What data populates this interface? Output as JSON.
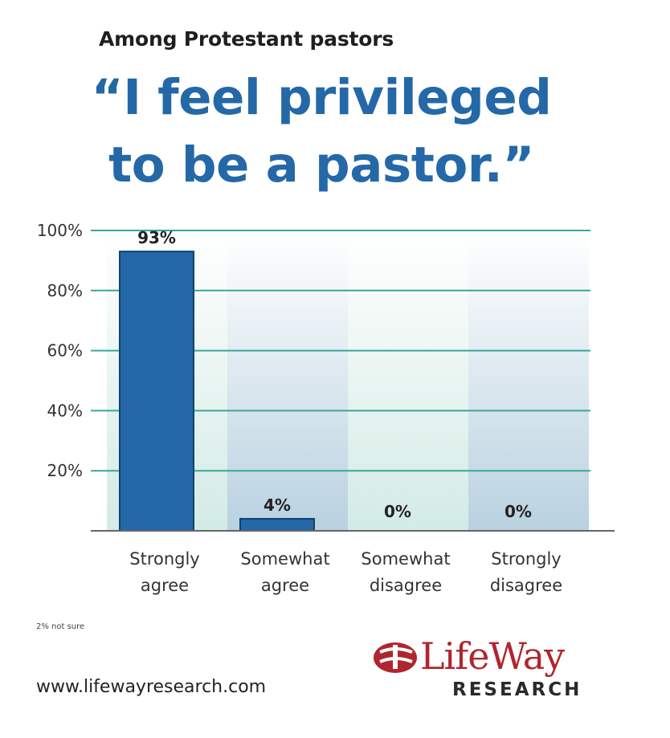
{
  "header": {
    "subtitle": "Among Protestant pastors",
    "quote_line1": "“I feel privileged",
    "quote_line2": "to be a pastor.”"
  },
  "chart_data": {
    "type": "bar",
    "categories": [
      [
        "Strongly",
        "agree"
      ],
      [
        "Somewhat",
        "agree"
      ],
      [
        "Somewhat",
        "disagree"
      ],
      [
        "Strongly",
        "disagree"
      ]
    ],
    "values": [
      93,
      4,
      0,
      0
    ],
    "data_labels": [
      "93%",
      "4%",
      "0%",
      "0%"
    ],
    "ylim": [
      0,
      100
    ],
    "yticks": [
      "20%",
      "40%",
      "60%",
      "80%",
      "100%"
    ],
    "ytick_values": [
      20,
      40,
      60,
      80,
      100
    ],
    "grid": true,
    "colors": {
      "bar": "#2468a8",
      "bar_edge": "#10416e",
      "grid": "#3aa796"
    }
  },
  "footer": {
    "note": "2% not sure",
    "url": "www.lifewayresearch.com",
    "logo_word": "LifeWay",
    "logo_sub": "RESEARCH"
  }
}
